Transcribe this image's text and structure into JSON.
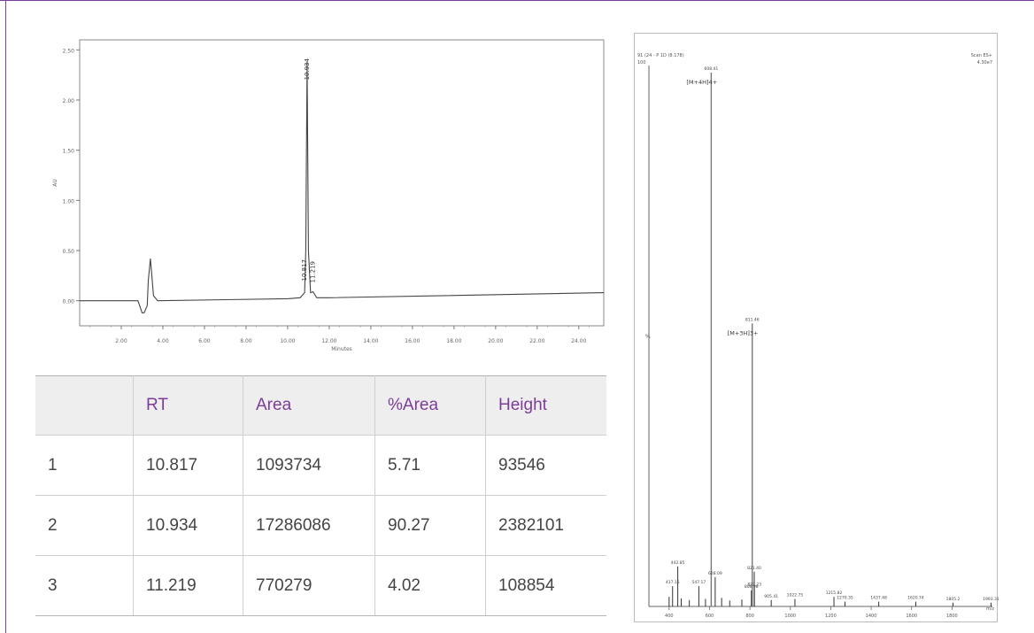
{
  "chart_data": [
    {
      "type": "line",
      "xlabel": "Minutes",
      "ylabel": "AU",
      "xlim": [
        0,
        25.2
      ],
      "ylim": [
        -0.25,
        2.6
      ],
      "yticks": [
        "0.00",
        "0.50",
        "1.00",
        "1.50",
        "2.00",
        "2.50"
      ],
      "xticks": [
        "2.00",
        "4.00",
        "6.00",
        "8.00",
        "10.00",
        "12.00",
        "14.00",
        "16.00",
        "18.00",
        "20.00",
        "22.00",
        "24.00"
      ],
      "x": [
        0,
        2.5,
        2.8,
        3.0,
        3.1,
        3.25,
        3.3,
        3.4,
        3.55,
        3.75,
        10.0,
        10.6,
        10.817,
        10.87,
        10.934,
        11.0,
        11.1,
        11.219,
        11.4,
        12.0,
        25.2
      ],
      "y": [
        0,
        0,
        0,
        -0.12,
        -0.12,
        -0.05,
        0.2,
        0.42,
        0.05,
        0.0,
        0.02,
        0.03,
        0.08,
        0.5,
        2.38,
        0.5,
        0.08,
        0.09,
        0.03,
        0.03,
        0.08
      ],
      "peak_labels": [
        {
          "x": 10.934,
          "text": "10.934"
        },
        {
          "x": 10.817,
          "text": "10.817"
        },
        {
          "x": 11.219,
          "text": "11.219"
        }
      ]
    },
    {
      "type": "bar",
      "header_left": "91 (24 - P 1D (8.178)",
      "header_left_line2": "100",
      "header_right": "Scan ES+",
      "header_right_line2": "4.30e7",
      "y_mid_label": "%",
      "xlabel": "m/z",
      "xlim": [
        300,
        2000
      ],
      "xticks": [
        "400",
        "600",
        "800",
        "1000",
        "1200",
        "1400",
        "1600",
        "1800"
      ],
      "peaks": [
        {
          "mz": 608.41,
          "intensity": 100,
          "label": "608.41",
          "annotation": "[M+4H]4+"
        },
        {
          "mz": 811.46,
          "intensity": 53,
          "label": "811.46",
          "annotation": "[M+3H]3+"
        },
        {
          "mz": 442.85,
          "intensity": 7.5,
          "label": "442.85"
        },
        {
          "mz": 628.09,
          "intensity": 5.5,
          "label": "628.09"
        },
        {
          "mz": 547.17,
          "intensity": 3.8,
          "label": "547.17"
        },
        {
          "mz": 417.15,
          "intensity": 3.8,
          "label": "417.15"
        },
        {
          "mz": 806.98,
          "intensity": 3,
          "label": "806.98"
        },
        {
          "mz": 821.4,
          "intensity": 6.5,
          "label": "821.40"
        },
        {
          "mz": 822.23,
          "intensity": 3.4,
          "label": "822.23"
        },
        {
          "mz": 400,
          "intensity": 1.8
        },
        {
          "mz": 460,
          "intensity": 1.5
        },
        {
          "mz": 500,
          "intensity": 1.2
        },
        {
          "mz": 580,
          "intensity": 1.4
        },
        {
          "mz": 660,
          "intensity": 1.6
        },
        {
          "mz": 700,
          "intensity": 1.1
        },
        {
          "mz": 760,
          "intensity": 1.3
        },
        {
          "mz": 905.41,
          "intensity": 1.2,
          "label": "905.41"
        },
        {
          "mz": 1022.75,
          "intensity": 1.4,
          "label": "1022.75"
        },
        {
          "mz": 1215.82,
          "intensity": 1.8,
          "label": "1215.82"
        },
        {
          "mz": 1270.35,
          "intensity": 0.9,
          "label": "1270.35"
        },
        {
          "mz": 1437.48,
          "intensity": 0.9,
          "label": "1437.48"
        },
        {
          "mz": 1620.74,
          "intensity": 0.9,
          "label": "1620.74"
        },
        {
          "mz": 1805.2,
          "intensity": 0.7,
          "label": "1805.2"
        },
        {
          "mz": 1993.31,
          "intensity": 0.7,
          "label": "1993.31"
        }
      ]
    },
    {
      "type": "table",
      "columns": [
        "",
        "RT",
        "Area",
        "%Area",
        "Height"
      ],
      "rows": [
        [
          "1",
          "10.817",
          "1093734",
          "5.71",
          "93546"
        ],
        [
          "2",
          "10.934",
          "17286086",
          "90.27",
          "2382101"
        ],
        [
          "3",
          "11.219",
          "770279",
          "4.02",
          "108854"
        ]
      ]
    }
  ]
}
